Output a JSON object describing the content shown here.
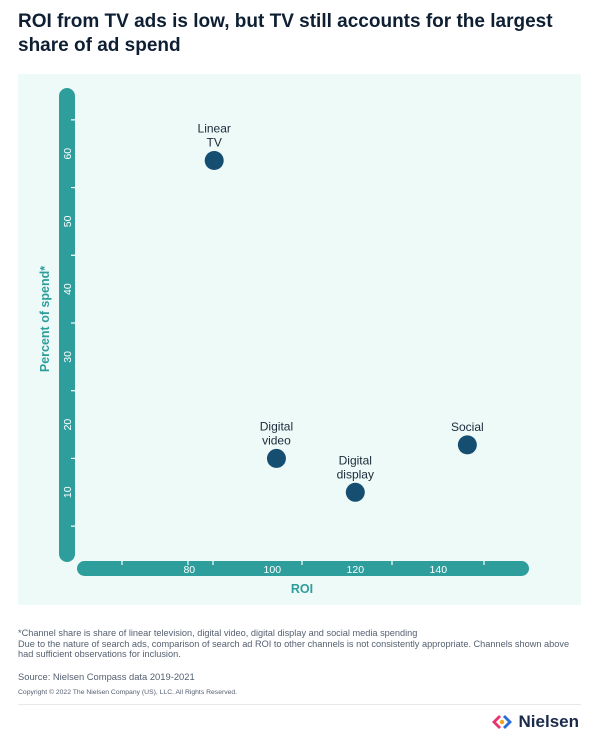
{
  "header": {
    "title": "ROI from TV ads is low, but TV still accounts for the largest share of ad spend"
  },
  "chart_data": {
    "type": "scatter",
    "title": "ROI from TV ads is low, but TV still accounts for the largest share of ad spend",
    "xlabel": "ROI",
    "ylabel": "Percent of spend*",
    "xlim": [
      58,
      158
    ],
    "ylim": [
      0,
      70
    ],
    "x_ticks": [
      80,
      100,
      120,
      140
    ],
    "y_ticks": [
      10,
      20,
      30,
      40,
      50,
      60
    ],
    "grid": false,
    "points": [
      {
        "label": "Linear TV",
        "label_lines": [
          "Linear",
          "TV"
        ],
        "x": 86,
        "y": 59
      },
      {
        "label": "Digital video",
        "label_lines": [
          "Digital",
          "video"
        ],
        "x": 101,
        "y": 15
      },
      {
        "label": "Digital display",
        "label_lines": [
          "Digital",
          "display"
        ],
        "x": 120,
        "y": 10
      },
      {
        "label": "Social",
        "label_lines": [
          "Social"
        ],
        "x": 147,
        "y": 17
      }
    ],
    "colors": {
      "point": "#164e72",
      "axis_bar": "#2e9e9c",
      "axis_label": "#2e9e9c",
      "plot_background": "#eefaf8"
    }
  },
  "footer": {
    "note_1": "*Channel share is share of linear television, digital video, digital display and social media spending",
    "note_2": "Due to the nature of search ads, comparison of search ad ROI to other channels is not consistently appropriate. Channels shown above had sufficient observations for inclusion.",
    "source": "Source: Nielsen Compass data 2019-2021",
    "copyright": "Copyright © 2022 The Nielsen Company (US), LLC. All Rights Reserved.",
    "brand": "Nielsen",
    "brand_icon": "nielsen-logo-icon"
  }
}
